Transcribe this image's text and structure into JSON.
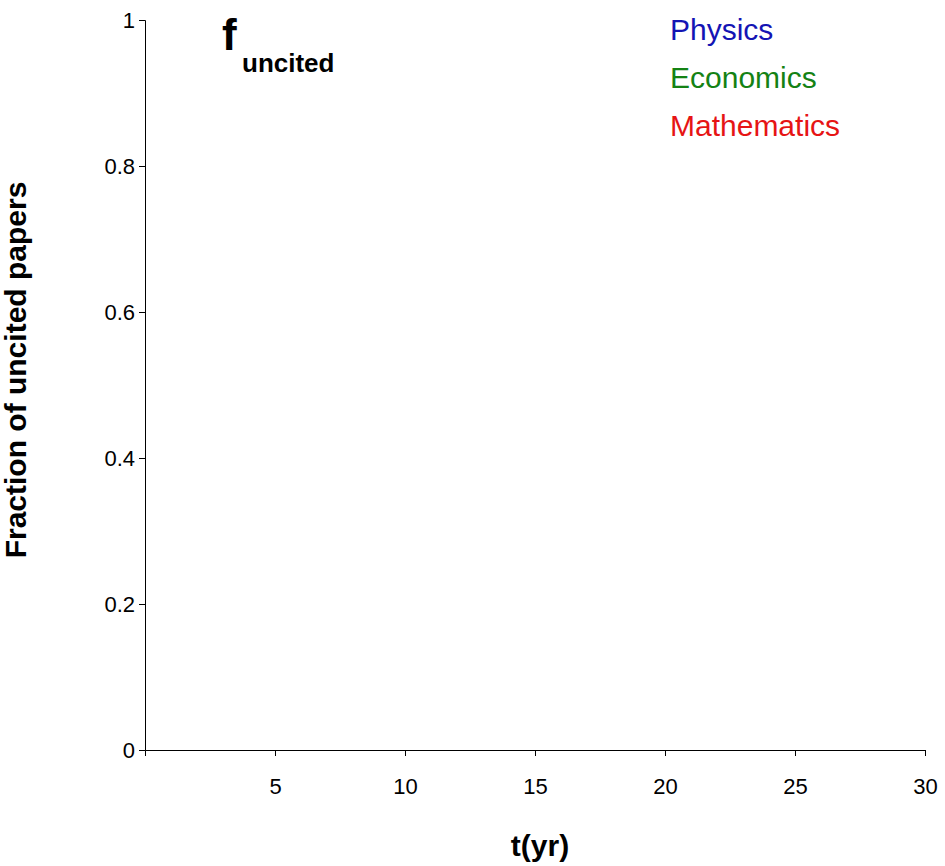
{
  "chart_data": {
    "type": "line",
    "title": "f",
    "title_subscript": "uncited",
    "x_label": "t(yr)",
    "y_label": "Fraction of uncited papers",
    "x": [],
    "series": [
      {
        "name": "Physics",
        "color": "#1414b4",
        "values": []
      },
      {
        "name": "Economics",
        "color": "#148214",
        "values": []
      },
      {
        "name": "Mathematics",
        "color": "#e61414",
        "values": []
      }
    ],
    "xlim": [
      0,
      30
    ],
    "xticks": [
      5,
      10,
      15,
      20,
      25,
      30
    ],
    "ylim": [
      0,
      1
    ],
    "yticks": [
      0,
      0.2,
      0.4,
      0.6,
      0.8,
      1
    ],
    "legend": "upper right"
  }
}
